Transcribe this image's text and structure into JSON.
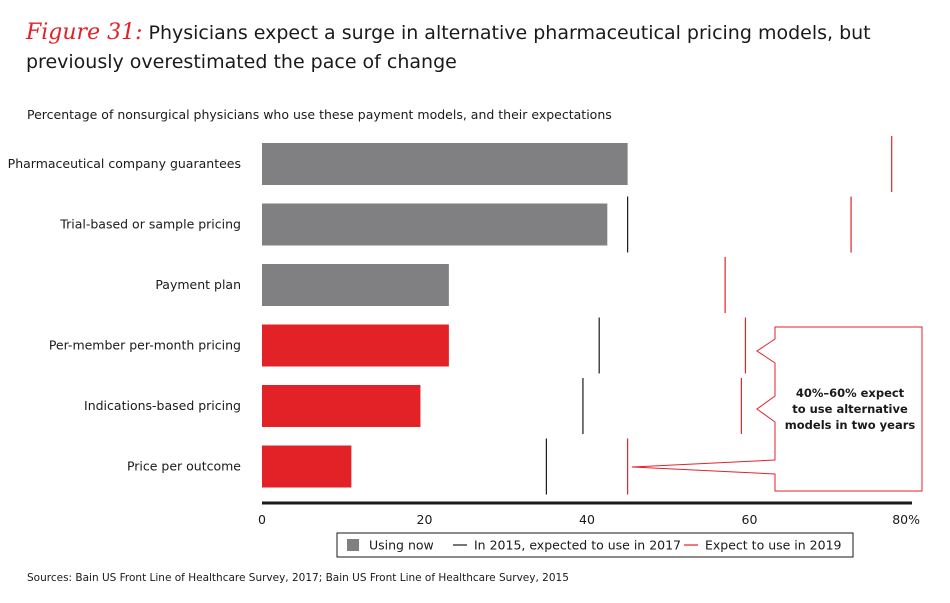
{
  "figure_label": "Figure 31:",
  "title": "Physicians expect a surge in alternative pharmaceutical pricing models, but previously overestimated the pace of change",
  "subtitle": "Percentage of nonsurgical physicians who use these payment models, and their expectations",
  "sources": "Sources: Bain US Front Line of Healthcare Survey, 2017; Bain US Front Line of Healthcare Survey, 2015",
  "colors": {
    "gray": "#808083",
    "red": "#e32228",
    "black": "#1a1a1a"
  },
  "chart_data": {
    "type": "bar",
    "orientation": "horizontal",
    "categories": [
      "Pharmaceutical company guarantees",
      "Trial-based or sample pricing",
      "Payment plan",
      "Per-member per-month pricing",
      "Indications-based pricing",
      "Price per outcome"
    ],
    "bar_colors": [
      "gray",
      "gray",
      "gray",
      "red",
      "red",
      "red"
    ],
    "series": [
      {
        "name": "Using now",
        "marker": "bar",
        "values": [
          45,
          42.5,
          23,
          23,
          19.5,
          11
        ]
      },
      {
        "name": "In 2015, expected to use in 2017",
        "marker": "line",
        "values": [
          null,
          45,
          null,
          41.5,
          39.5,
          35
        ]
      },
      {
        "name": "Expect to use in 2019",
        "marker": "line",
        "values": [
          77.5,
          72.5,
          57,
          59.5,
          59,
          45
        ]
      }
    ],
    "xlim": [
      0,
      80
    ],
    "xticks": [
      "0",
      "20",
      "40",
      "60",
      "80%"
    ],
    "xtick_values": [
      0,
      20,
      40,
      60,
      80
    ],
    "legend_position": "bottom-center",
    "callout": {
      "lines": [
        "40%–60% expect",
        "to use alternative",
        "models in two years"
      ],
      "applies_to": [
        "Per-member per-month pricing",
        "Indications-based pricing",
        "Price per outcome"
      ]
    }
  }
}
